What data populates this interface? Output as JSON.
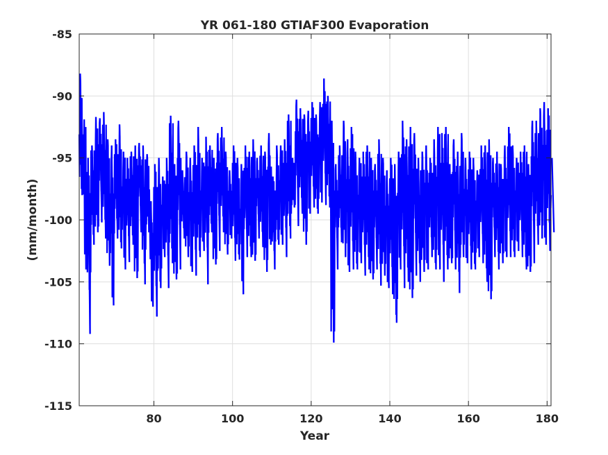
{
  "chart_data": {
    "type": "line",
    "title": "YR 061-180 GTIAF300 Evaporation",
    "xlabel": "Year",
    "ylabel": "(mm/month)",
    "xlim": [
      61,
      181
    ],
    "ylim": [
      -115,
      -85
    ],
    "xticks": [
      80,
      100,
      120,
      140,
      160,
      180
    ],
    "xtick_labels": [
      "80",
      "100",
      "120",
      "140",
      "160",
      "180"
    ],
    "yticks": [
      -115,
      -110,
      -105,
      -100,
      -95,
      -90,
      -85
    ],
    "ytick_labels": [
      "-115",
      "-110",
      "-105",
      "-100",
      "-95",
      "-90",
      "-85"
    ],
    "grid": true,
    "series_color": "#0000ff",
    "series": [
      {
        "x": [
          61.0,
          62.0,
          63.0,
          64.0,
          65.0,
          66.0,
          67.0,
          68.0,
          69.0,
          70.0,
          71.0,
          72.0,
          73.0,
          74.0,
          75.0,
          76.0,
          77.0,
          78.0,
          79.0,
          80.0,
          81.0,
          82.0,
          83.0,
          84.0,
          85.0,
          86.0,
          87.0,
          88.0,
          89.0,
          90.0,
          91.0,
          92.0,
          93.0,
          94.0,
          95.0,
          96.0,
          97.0,
          98.0,
          99.0,
          100.0,
          101.0,
          102.0,
          103.0,
          104.0,
          105.0,
          106.0,
          107.0,
          108.0,
          109.0,
          110.0,
          111.0,
          112.0,
          113.0,
          114.0,
          115.0,
          116.0,
          117.0,
          118.0,
          119.0,
          120.0,
          121.0,
          122.0,
          123.0,
          124.0,
          125.0,
          126.0,
          127.0,
          128.0,
          129.0,
          130.0,
          131.0,
          132.0,
          133.0,
          134.0,
          135.0,
          136.0,
          137.0,
          138.0,
          139.0,
          140.0,
          141.0,
          142.0,
          143.0,
          144.0,
          145.0,
          146.0,
          147.0,
          148.0,
          149.0,
          150.0,
          151.0,
          152.0,
          153.0,
          154.0,
          155.0,
          156.0,
          157.0,
          158.0,
          159.0,
          160.0,
          161.0,
          162.0,
          163.0,
          164.0,
          165.0,
          166.0,
          167.0,
          168.0,
          169.0,
          170.0,
          171.0,
          172.0,
          173.0,
          174.0,
          175.0,
          176.0,
          177.0,
          178.0,
          179.0,
          180.0,
          181.0
        ],
        "ymin": [
          -98.0,
          -104.0,
          -109.2,
          -102.0,
          -101.0,
          -100.2,
          -101.5,
          -103.7,
          -106.9,
          -101.5,
          -102.3,
          -104.0,
          -103.4,
          -102.0,
          -104.7,
          -101.0,
          -105.2,
          -101.0,
          -107.0,
          -107.8,
          -105.5,
          -103.0,
          -105.5,
          -103.5,
          -104.8,
          -104.0,
          -101.5,
          -103.0,
          -104.2,
          -104.5,
          -103.0,
          -102.5,
          -105.2,
          -101.0,
          -103.6,
          -102.5,
          -101.0,
          -102.8,
          -101.5,
          -103.3,
          -103.2,
          -106.0,
          -103.0,
          -103.0,
          -103.3,
          -101.5,
          -102.2,
          -104.2,
          -102.0,
          -104.0,
          -102.0,
          -102.0,
          -103.0,
          -101.5,
          -99.0,
          -100.5,
          -99.5,
          -102.0,
          -99.5,
          -99.0,
          -99.5,
          -98.6,
          -98.8,
          -99.0,
          -109.9,
          -104.0,
          -101.8,
          -103.0,
          -104.2,
          -104.0,
          -104.0,
          -103.5,
          -104.5,
          -104.0,
          -104.8,
          -104.0,
          -105.3,
          -104.5,
          -105.5,
          -106.0,
          -108.3,
          -104.0,
          -105.5,
          -105.0,
          -106.3,
          -104.5,
          -105.0,
          -104.2,
          -104.0,
          -103.0,
          -104.0,
          -104.0,
          -105.0,
          -104.0,
          -103.5,
          -104.0,
          -105.9,
          -103.0,
          -103.5,
          -104.0,
          -104.0,
          -103.0,
          -103.5,
          -105.0,
          -106.4,
          -103.0,
          -104.0,
          -103.5,
          -103.0,
          -103.0,
          -103.0,
          -102.5,
          -103.0,
          -104.0,
          -104.2,
          -103.5,
          -102.0,
          -101.5,
          -102.0,
          -102.5,
          -101.0
        ],
        "ymax": [
          -88.2,
          -91.9,
          -95.0,
          -94.0,
          -91.7,
          -91.8,
          -91.3,
          -93.5,
          -94.0,
          -93.5,
          -92.3,
          -94.5,
          -95.0,
          -94.5,
          -94.0,
          -93.8,
          -94.0,
          -94.7,
          -98.5,
          -95.5,
          -95.0,
          -96.5,
          -95.0,
          -91.6,
          -95.5,
          -92.0,
          -96.0,
          -94.5,
          -95.0,
          -94.0,
          -92.5,
          -95.0,
          -93.3,
          -94.0,
          -95.0,
          -93.0,
          -92.5,
          -94.5,
          -96.0,
          -94.0,
          -95.0,
          -95.5,
          -94.0,
          -94.5,
          -93.5,
          -95.0,
          -94.0,
          -94.5,
          -93.0,
          -96.5,
          -94.0,
          -94.0,
          -93.5,
          -91.5,
          -95.0,
          -90.3,
          -91.0,
          -91.5,
          -91.2,
          -90.5,
          -91.5,
          -90.5,
          -88.6,
          -90.0,
          -92.0,
          -95.5,
          -94.0,
          -92.0,
          -93.5,
          -92.5,
          -94.5,
          -95.0,
          -94.5,
          -94.0,
          -95.0,
          -95.5,
          -93.5,
          -95.0,
          -96.0,
          -95.0,
          -95.5,
          -94.5,
          -92.0,
          -93.5,
          -92.5,
          -93.0,
          -95.0,
          -94.5,
          -94.0,
          -95.0,
          -93.5,
          -92.5,
          -93.0,
          -92.5,
          -95.5,
          -93.5,
          -94.5,
          -93.0,
          -95.0,
          -94.5,
          -95.0,
          -96.0,
          -94.0,
          -94.0,
          -93.5,
          -95.0,
          -94.5,
          -95.5,
          -94.0,
          -92.5,
          -94.0,
          -95.0,
          -94.5,
          -94.0,
          -95.5,
          -92.0,
          -92.0,
          -91.0,
          -90.5,
          -91.0,
          -95.0
        ]
      }
    ]
  }
}
